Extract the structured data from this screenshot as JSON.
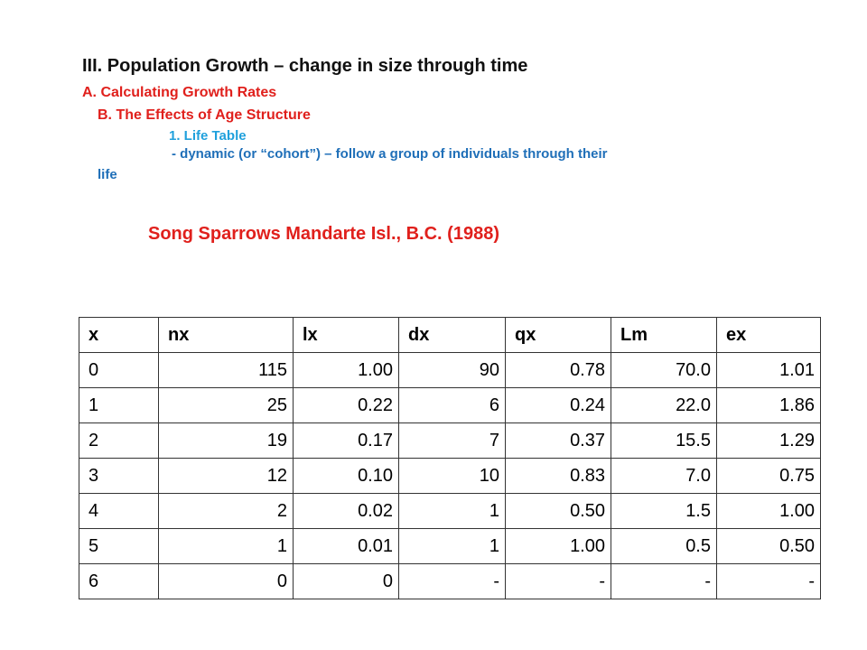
{
  "slide": {
    "heading": "III. Population Growth – change in size through time",
    "outline_a": "A. Calculating  Growth Rates",
    "outline_b": "B. The Effects of Age Structure",
    "outline_b1": "1. Life Table",
    "outline_dash": "- dynamic (or “cohort”) – follow a group of individuals through their",
    "outline_dash_cont": "life",
    "subtitle": "Song Sparrows Mandarte Isl., B.C. (1988)"
  },
  "table": {
    "columns": [
      "x",
      "nx",
      "lx",
      "dx",
      "qx",
      "Lm",
      "ex"
    ],
    "rows": [
      [
        "0",
        "115",
        "1.00",
        "90",
        "0.78",
        "70.0",
        "1.01"
      ],
      [
        "1",
        "25",
        "0.22",
        "6",
        "0.24",
        "22.0",
        "1.86"
      ],
      [
        "2",
        "19",
        "0.17",
        "7",
        "0.37",
        "15.5",
        "1.29"
      ],
      [
        "3",
        "12",
        "0.10",
        "10",
        "0.83",
        "7.0",
        "0.75"
      ],
      [
        "4",
        "2",
        "0.02",
        "1",
        "0.50",
        "1.5",
        "1.00"
      ],
      [
        "5",
        "1",
        "0.01",
        "1",
        "1.00",
        "0.5",
        "0.50"
      ],
      [
        "6",
        "0",
        "0",
        "-",
        "-",
        "-",
        "-"
      ]
    ]
  },
  "colors": {
    "heading": "#111111",
    "red": "#e0201c",
    "light_blue": "#1fa0dc",
    "dark_blue": "#1f6fb8"
  }
}
